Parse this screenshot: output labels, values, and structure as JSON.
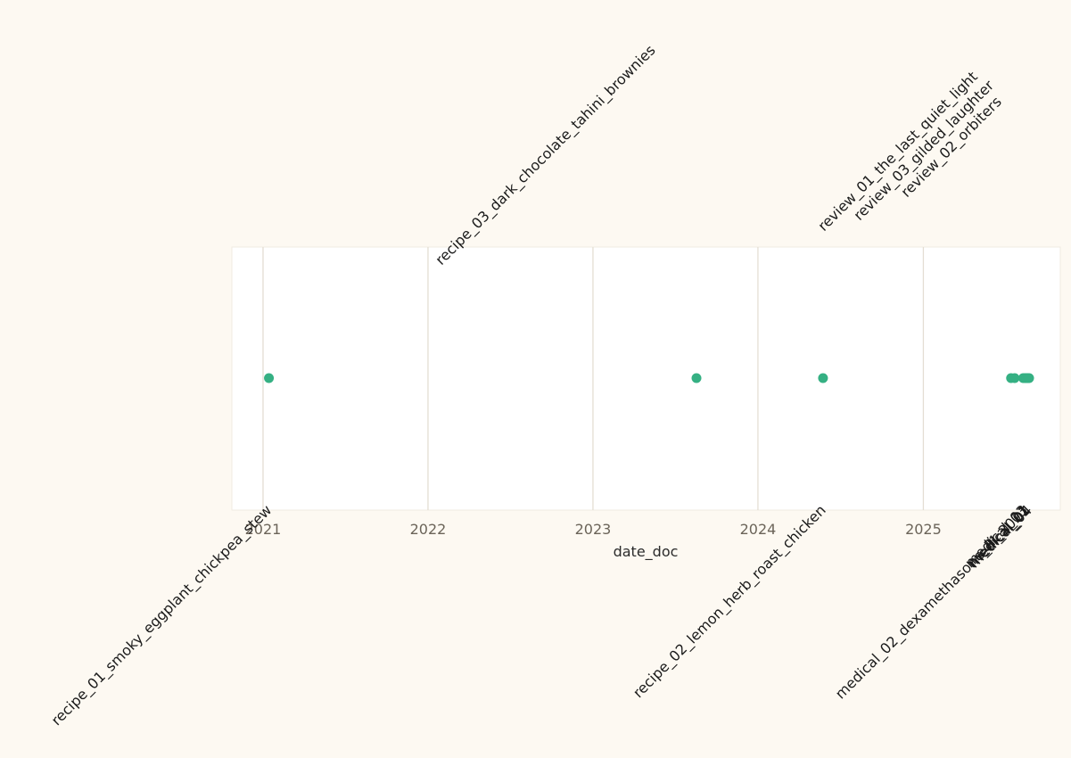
{
  "chart_data": {
    "type": "scatter",
    "title": "",
    "xlabel": "date_doc",
    "ylabel": "",
    "x_axis": "date",
    "xlim": [
      "2020-10-24",
      "2025-10-31"
    ],
    "x_ticks": [
      {
        "date": "2021-01-01",
        "label": "2021"
      },
      {
        "date": "2022-01-01",
        "label": "2022"
      },
      {
        "date": "2023-01-01",
        "label": "2023"
      },
      {
        "date": "2024-01-01",
        "label": "2024"
      },
      {
        "date": "2025-01-01",
        "label": "2025"
      }
    ],
    "grid": "vertical",
    "marker_color": "#35b083",
    "points": [
      {
        "date": "2021-01-14",
        "label": "recipe_01_smoky_eggplant_chickpea_stew",
        "label_side": "below"
      },
      {
        "date": "2023-08-18",
        "label": "recipe_03_dark_chocolate_tahini_brownies",
        "label_side": "above"
      },
      {
        "date": "2024-05-24",
        "label": "recipe_02_lemon_herb_roast_chicken",
        "label_side": "below"
      },
      {
        "date": "2025-07-14",
        "label": "review_01_the_last_quiet_light",
        "label_side": "above"
      },
      {
        "date": "2025-07-22",
        "label": "review_03_gilded_laughter",
        "label_side": "above"
      },
      {
        "date": "2025-08-10",
        "label": "review_02_orbiters",
        "label_side": "above"
      },
      {
        "date": "2025-08-14",
        "label": "medical_03",
        "label_side": "below"
      },
      {
        "date": "2025-08-17",
        "label": "medical_02_dexamethasone_PI_2021",
        "label_side": "below"
      },
      {
        "date": "2025-08-20",
        "label": "medical_01",
        "label_side": "below"
      },
      {
        "date": "2025-08-23",
        "label": "medical_04",
        "label_side": "below"
      }
    ]
  },
  "colors": {
    "background": "#fdf9f2",
    "plot_background": "#ffffff",
    "grid": "#e4ded3",
    "marker": "#35b083"
  }
}
